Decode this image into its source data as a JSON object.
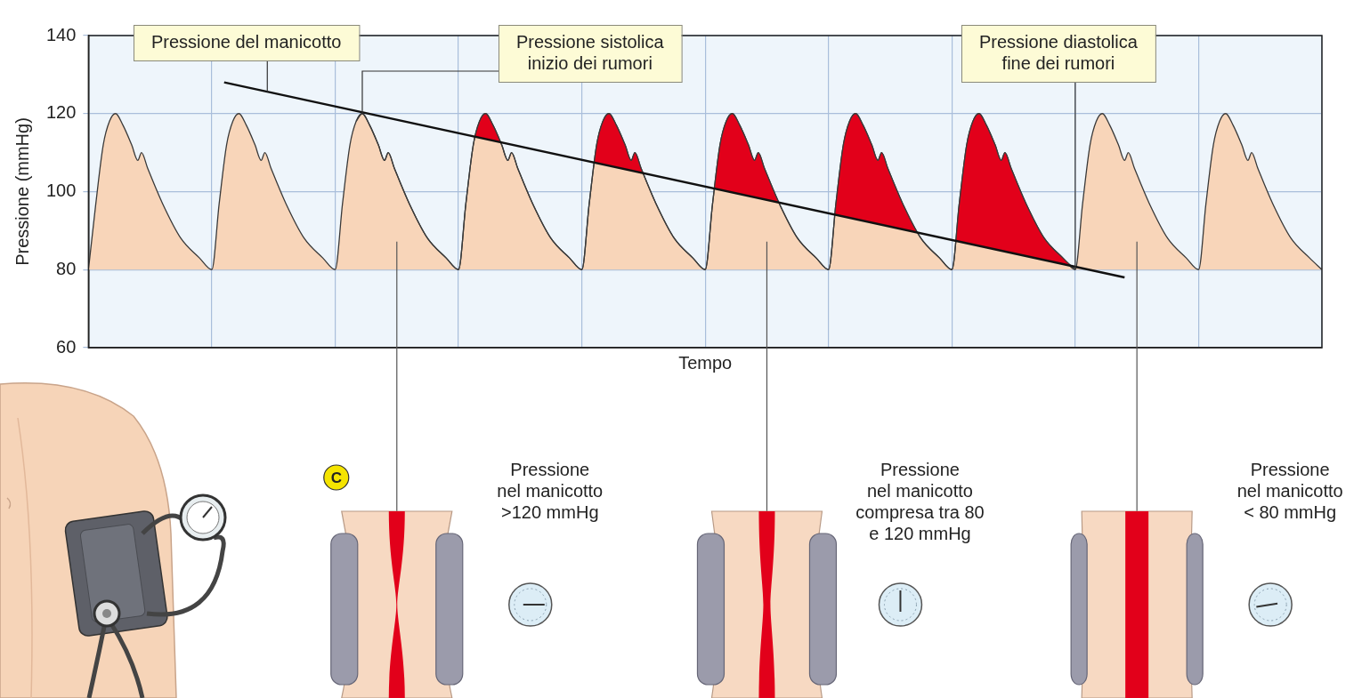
{
  "chart_data": {
    "type": "line",
    "y_label": "Pressione (mmHg)",
    "x_label": "Tempo",
    "xlim": [
      0,
      10
    ],
    "xticks": [
      0,
      1,
      2,
      3,
      4,
      5,
      6,
      7,
      8,
      9,
      10
    ],
    "ylim": [
      60,
      140
    ],
    "yticks": [
      60,
      80,
      100,
      120,
      140
    ],
    "grid": true,
    "tick_labels": "y",
    "series": [
      {
        "type": "area",
        "color": "#f8d5b9",
        "x": [
          0,
          0.06,
          0.12,
          0.17,
          0.22,
          0.28,
          0.35,
          0.4,
          0.43,
          0.48,
          0.6,
          0.75,
          0.9,
          1,
          1.06,
          1.12,
          1.17,
          1.22,
          1.28,
          1.35,
          1.4,
          1.43,
          1.48,
          1.6,
          1.75,
          1.9,
          2,
          2.06,
          2.12,
          2.17,
          2.22,
          2.28,
          2.35,
          2.4,
          2.43,
          2.48,
          2.6,
          2.75,
          2.9,
          3,
          3.06,
          3.12,
          3.17,
          3.22,
          3.28,
          3.35,
          3.4,
          3.43,
          3.48,
          3.6,
          3.75,
          3.9,
          4,
          4.06,
          4.12,
          4.17,
          4.22,
          4.28,
          4.35,
          4.4,
          4.43,
          4.48,
          4.6,
          4.75,
          4.9,
          5,
          5.06,
          5.12,
          5.17,
          5.22,
          5.28,
          5.35,
          5.4,
          5.43,
          5.48,
          5.6,
          5.75,
          5.9,
          6,
          6.06,
          6.12,
          6.17,
          6.22,
          6.28,
          6.35,
          6.4,
          6.43,
          6.48,
          6.6,
          6.75,
          6.9,
          7,
          7.06,
          7.12,
          7.17,
          7.22,
          7.28,
          7.35,
          7.4,
          7.43,
          7.48,
          7.6,
          7.75,
          7.9,
          8,
          8.06,
          8.12,
          8.17,
          8.22,
          8.28,
          8.35,
          8.4,
          8.43,
          8.48,
          8.6,
          8.75,
          8.9,
          9,
          9.06,
          9.12,
          9.17,
          9.22,
          9.28,
          9.35,
          9.4,
          9.43,
          9.48,
          9.6,
          9.75,
          9.9,
          10
        ],
        "values": [
          80,
          97,
          112,
          118,
          120,
          117,
          112,
          108,
          110,
          106,
          97,
          88,
          83,
          80,
          97,
          112,
          118,
          120,
          117,
          112,
          108,
          110,
          106,
          97,
          88,
          83,
          80,
          97,
          112,
          118,
          120,
          117,
          112,
          108,
          110,
          106,
          97,
          88,
          83,
          80,
          97,
          112,
          118,
          120,
          117,
          112,
          108,
          110,
          106,
          97,
          88,
          83,
          80,
          97,
          112,
          118,
          120,
          117,
          112,
          108,
          110,
          106,
          97,
          88,
          83,
          80,
          97,
          112,
          118,
          120,
          117,
          112,
          108,
          110,
          106,
          97,
          88,
          83,
          80,
          97,
          112,
          118,
          120,
          117,
          112,
          108,
          110,
          106,
          97,
          88,
          83,
          80,
          97,
          112,
          118,
          120,
          117,
          112,
          108,
          110,
          106,
          97,
          88,
          83,
          80,
          97,
          112,
          118,
          120,
          117,
          112,
          108,
          110,
          106,
          97,
          88,
          83,
          80,
          97,
          112,
          118,
          120,
          117,
          112,
          108,
          110,
          106,
          97,
          88,
          83,
          80
        ]
      },
      {
        "type": "area",
        "color": "#e2001a",
        "x": [
          2.17,
          2.22,
          2.28,
          2.35,
          2.4,
          2.43,
          2.48,
          2.6,
          2.75,
          2.9,
          3,
          3.06,
          3.12,
          3.17,
          3.22,
          3.28,
          3.35,
          3.4,
          3.43,
          3.48,
          3.6,
          3.75,
          3.9,
          4,
          4.06,
          4.12,
          4.17,
          4.22,
          4.28,
          4.35,
          4.4,
          4.43,
          4.48,
          4.6,
          4.75,
          4.9,
          5,
          5.06,
          5.12,
          5.17,
          5.22,
          5.28,
          5.35,
          5.4,
          5.43,
          5.48,
          5.6,
          5.75,
          5.9,
          6,
          6.06,
          6.12,
          6.17,
          6.22,
          6.28,
          6.35,
          6.4,
          6.43,
          6.48,
          6.6,
          6.75,
          6.9,
          7,
          7.06,
          7.12,
          7.17,
          7.22,
          7.28,
          7.35,
          7.4,
          7.43,
          7.48,
          7.6,
          7.75,
          7.9,
          8
        ],
        "values": [
          118,
          120,
          117,
          112,
          108,
          110,
          106,
          97,
          88,
          83,
          80,
          97,
          112,
          118,
          120,
          117,
          112,
          108,
          110,
          106,
          97,
          88,
          83,
          80,
          97,
          112,
          118,
          120,
          117,
          112,
          108,
          110,
          106,
          97,
          88,
          83,
          80,
          97,
          112,
          118,
          120,
          117,
          112,
          108,
          110,
          106,
          97,
          88,
          83,
          80,
          97,
          112,
          118,
          120,
          117,
          112,
          108,
          110,
          106,
          97,
          88,
          83,
          80,
          97,
          112,
          118,
          120,
          117,
          112,
          108,
          110,
          106,
          97,
          88,
          83,
          80
        ]
      },
      {
        "type": "line",
        "color": "#111111",
        "x": [
          1.1,
          8.4
        ],
        "values": [
          128,
          78
        ]
      }
    ],
    "annotations": [
      {
        "text": [
          "Pressione del manicotto"
        ],
        "x": 1.45,
        "y": 125.6
      },
      {
        "text": [
          "Pressione sistolica",
          "inizio dei rumori"
        ],
        "x": 2.22,
        "y": 120
      },
      {
        "text": [
          "Pressione diastolica",
          "fine dei rumori"
        ],
        "x": 8,
        "y": 80
      }
    ],
    "illustration": {
      "panel": "C",
      "labels": [
        [
          "Pressione",
          "nel manicotto",
          ">120 mmHg"
        ],
        [
          "Pressione",
          "nel manicotto",
          "compresa tra 80",
          "e 120 mmHg"
        ],
        [
          "Pressione",
          "nel manicotto",
          "< 80 mmHg"
        ]
      ]
    }
  }
}
